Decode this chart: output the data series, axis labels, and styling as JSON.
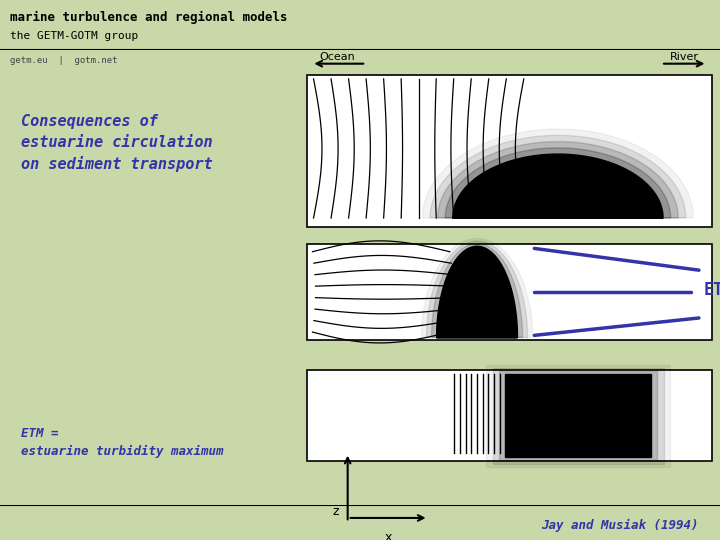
{
  "bg_color": "#c8d8a8",
  "white": "#ffffff",
  "black": "#000000",
  "blue": "#3333aa",
  "header_text1": "marine turbulence and regional models",
  "header_text2": "the GETM-GOTM group",
  "subheader_text": "getm.eu  |  gotm.net",
  "title_text": "Consequences of\nestuarine circulation\non sediment transport",
  "etm_label": "ETM",
  "etm_def": "ETM =\nestuarine turbidity maximum",
  "citation": "Jay and Musiak (1994)"
}
